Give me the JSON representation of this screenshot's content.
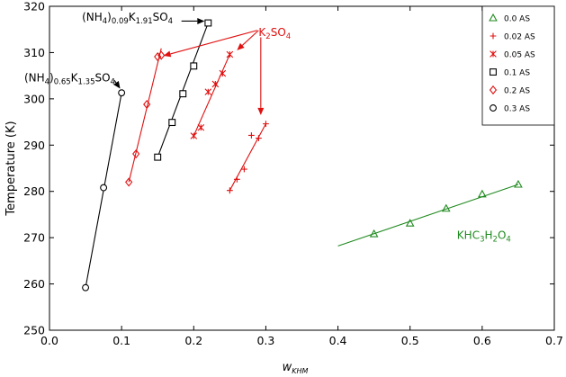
{
  "chart_data": {
    "type": "scatter",
    "xlabel": "w",
    "xlabel_sub": "KHM",
    "ylabel": "Temperature (K)",
    "xlim": [
      0.0,
      0.7
    ],
    "ylim": [
      250,
      320
    ],
    "x_ticks": [
      "0.0",
      "0.1",
      "0.2",
      "0.3",
      "0.4",
      "0.5",
      "0.6",
      "0.7"
    ],
    "y_ticks": [
      "250",
      "260",
      "270",
      "280",
      "290",
      "300",
      "310",
      "320"
    ],
    "legend_position": "top-right",
    "series": [
      {
        "name": "0.0 AS",
        "marker": "triangle",
        "color": "#1f8a1f",
        "x": [
          0.45,
          0.5,
          0.55,
          0.6,
          0.65
        ],
        "y": [
          270.8,
          273.1,
          276.3,
          279.4,
          281.5
        ]
      },
      {
        "name": "0.02 AS",
        "marker": "plus",
        "color": "#e01010",
        "x": [
          0.25,
          0.26,
          0.27,
          0.28,
          0.29,
          0.3
        ],
        "y": [
          280.2,
          282.6,
          284.8,
          292.1,
          291.5,
          294.6
        ]
      },
      {
        "name": "0.05 AS",
        "marker": "cross",
        "color": "#e01010",
        "x": [
          0.2,
          0.21,
          0.22,
          0.23,
          0.24,
          0.25
        ],
        "y": [
          292.0,
          293.8,
          301.5,
          303.2,
          305.5,
          309.6
        ]
      },
      {
        "name": "0.1 AS",
        "marker": "square",
        "color": "#000000",
        "x": [
          0.15,
          0.17,
          0.185,
          0.2,
          0.22
        ],
        "y": [
          287.4,
          294.9,
          301.1,
          307.1,
          316.4
        ]
      },
      {
        "name": "0.2 AS",
        "marker": "diamond",
        "color": "#e01010",
        "x": [
          0.11,
          0.12,
          0.135,
          0.15,
          0.155
        ],
        "y": [
          282.0,
          288.1,
          298.8,
          309.1,
          309.4
        ]
      },
      {
        "name": "0.3 AS",
        "marker": "circle",
        "color": "#000000",
        "x": [
          0.05,
          0.075,
          0.1
        ],
        "y": [
          259.2,
          280.8,
          301.3
        ]
      }
    ],
    "lines": [
      {
        "color": "#1f8a1f",
        "x": [
          0.4,
          0.65
        ],
        "y": [
          268.2,
          281.5
        ]
      },
      {
        "color": "#e01010",
        "x": [
          0.25,
          0.3
        ],
        "y": [
          280.2,
          294.6
        ]
      },
      {
        "color": "#e01010",
        "x": [
          0.2,
          0.25
        ],
        "y": [
          292.0,
          309.6
        ]
      },
      {
        "color": "#000000",
        "x": [
          0.15,
          0.22
        ],
        "y": [
          287.4,
          316.4
        ]
      },
      {
        "color": "#e01010",
        "x": [
          0.11,
          0.155
        ],
        "y": [
          282.0,
          310.9
        ]
      },
      {
        "color": "#000000",
        "x": [
          0.05,
          0.1
        ],
        "y": [
          259.2,
          301.3
        ]
      }
    ],
    "annotations": [
      {
        "id": "nh4-009",
        "parts": [
          [
            "(NH",
            ""
          ],
          [
            "4",
            "sub"
          ],
          [
            ")",
            ""
          ],
          [
            "0.09",
            "sub"
          ],
          [
            "K",
            ""
          ],
          [
            "1.91",
            "sub"
          ],
          [
            "SO",
            ""
          ],
          [
            "4",
            "sub"
          ]
        ],
        "color": "#000000",
        "x": 0.045,
        "y": 316.9,
        "anchor": "start"
      },
      {
        "id": "nh4-065",
        "parts": [
          [
            "(NH",
            ""
          ],
          [
            "4",
            "sub"
          ],
          [
            ")",
            ""
          ],
          [
            "0.65",
            "sub"
          ],
          [
            "K",
            ""
          ],
          [
            "1.35",
            "sub"
          ],
          [
            "SO",
            ""
          ],
          [
            "4",
            "sub"
          ]
        ],
        "color": "#000000",
        "x": -0.035,
        "y": 303.8,
        "anchor": "start"
      },
      {
        "id": "k2so4",
        "parts": [
          [
            "K",
            ""
          ],
          [
            "2",
            "sub"
          ],
          [
            "SO",
            ""
          ],
          [
            "4",
            "sub"
          ]
        ],
        "color": "#e01010",
        "x": 0.29,
        "y": 313.6,
        "anchor": "start"
      },
      {
        "id": "khc",
        "parts": [
          [
            "KHC",
            ""
          ],
          [
            "3",
            "sub"
          ],
          [
            "H",
            ""
          ],
          [
            "2",
            "sub"
          ],
          [
            "O",
            ""
          ],
          [
            "4",
            "sub"
          ]
        ],
        "color": "#1f8a1f",
        "x": 0.565,
        "y": 269.7,
        "anchor": "start"
      }
    ],
    "arrows": [
      {
        "color": "#000000",
        "from": [
          0.183,
          316.8
        ],
        "to": [
          0.215,
          316.8
        ]
      },
      {
        "color": "#000000",
        "from": [
          0.09,
          304.0
        ],
        "to": [
          0.098,
          302.2
        ]
      },
      {
        "color": "#e01010",
        "from": [
          0.288,
          314.8
        ],
        "to": [
          0.158,
          309.3
        ]
      },
      {
        "color": "#e01010",
        "from": [
          0.29,
          314.8
        ],
        "to": [
          0.26,
          310.5
        ]
      },
      {
        "color": "#e01010",
        "from": [
          0.293,
          313.3
        ],
        "to": [
          0.293,
          296.5
        ]
      }
    ]
  }
}
